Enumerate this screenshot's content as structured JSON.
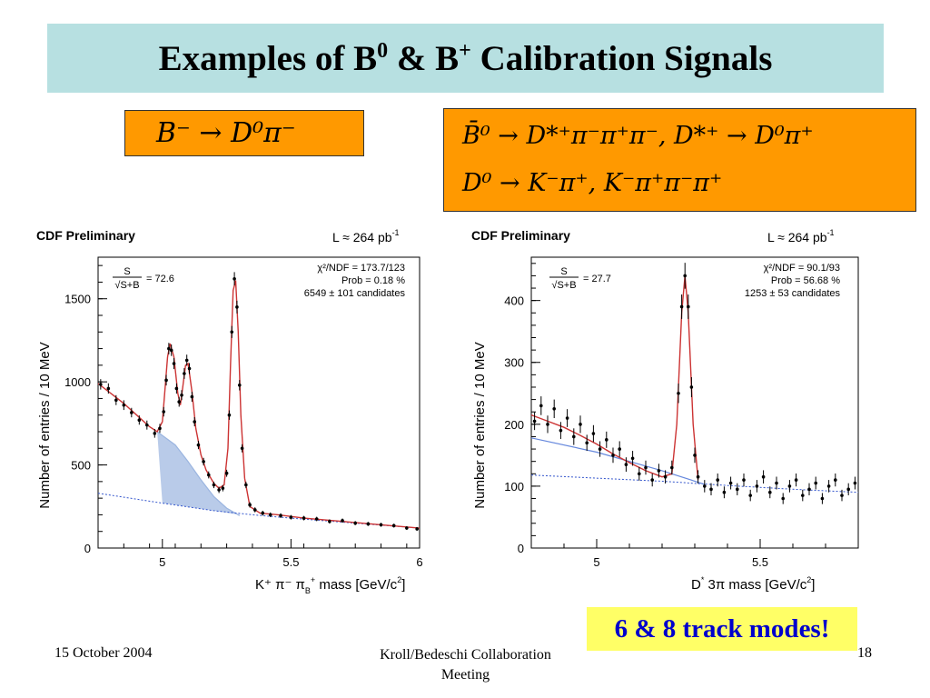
{
  "slide": {
    "title_main": "Examples of B",
    "title_sup1": "0",
    "title_mid": " & B",
    "title_sup2": "+",
    "title_end": " Calibration Signals",
    "eq1": "B⁻ → D⁰π⁻",
    "eq2_line1": "B̄⁰ → D*⁺π⁻π⁺π⁻, D*⁺ → D⁰π⁺",
    "eq2_line2": "D⁰ → K⁻π⁺, K⁻π⁺π⁻π⁺",
    "highlight": "6 & 8 track modes!",
    "footer_left": "15 October 2004",
    "footer_center_line1": "Kroll/Bedeschi Collaboration",
    "footer_center_line2": "Meeting",
    "footer_right": "18",
    "colors": {
      "title_bg": "#b7e0e1",
      "eq_bg": "#ff9900",
      "highlight_bg": "#ffff66",
      "highlight_text": "#0000cc",
      "fit_line": "#cc3333",
      "background_fill": "#9bb5e0"
    }
  },
  "chart_data": [
    {
      "type": "scatter",
      "header_left": "CDF Preliminary",
      "header_right": "L ≈ 264 pb",
      "header_right_sup": "-1",
      "ylabel": "Number of entries / 10 MeV",
      "xlabel": "K⁺ π⁻ π",
      "xlabel_sub": "B",
      "xlabel_sup": "+",
      "xlabel_end": " mass [GeV/c",
      "xlabel_sup2": "2",
      "xlabel_close": "]",
      "xlim": [
        4.75,
        6.0
      ],
      "ylim": [
        0,
        1750
      ],
      "xticks": [
        5,
        5.5,
        6
      ],
      "xtick_labels": [
        "5",
        "5.5",
        "6"
      ],
      "yticks": [
        0,
        500,
        1000,
        1500
      ],
      "ytick_labels": [
        "0",
        "500",
        "1000",
        "1500"
      ],
      "signif_num": "S",
      "signif_den": "√S+B",
      "signif_value": "= 72.6",
      "stats": [
        "χ²/NDF = 173.7/123",
        "Prob = 0.18 %",
        "6549 ± 101 candidates"
      ],
      "fit_curve": [
        [
          4.75,
          990
        ],
        [
          4.8,
          930
        ],
        [
          4.85,
          870
        ],
        [
          4.9,
          800
        ],
        [
          4.95,
          730
        ],
        [
          4.98,
          700
        ],
        [
          5.0,
          760
        ],
        [
          5.01,
          950
        ],
        [
          5.02,
          1150
        ],
        [
          5.03,
          1230
        ],
        [
          5.045,
          1150
        ],
        [
          5.06,
          930
        ],
        [
          5.07,
          860
        ],
        [
          5.08,
          980
        ],
        [
          5.09,
          1100
        ],
        [
          5.1,
          1110
        ],
        [
          5.115,
          940
        ],
        [
          5.13,
          720
        ],
        [
          5.15,
          560
        ],
        [
          5.17,
          470
        ],
        [
          5.2,
          390
        ],
        [
          5.22,
          360
        ],
        [
          5.24,
          380
        ],
        [
          5.255,
          600
        ],
        [
          5.265,
          1100
        ],
        [
          5.275,
          1550
        ],
        [
          5.285,
          1610
        ],
        [
          5.295,
          1300
        ],
        [
          5.305,
          800
        ],
        [
          5.32,
          420
        ],
        [
          5.34,
          250
        ],
        [
          5.38,
          210
        ],
        [
          5.45,
          200
        ],
        [
          5.55,
          180
        ],
        [
          5.7,
          160
        ],
        [
          5.85,
          140
        ],
        [
          6.0,
          120
        ]
      ],
      "combinatorial_bg": [
        [
          4.75,
          330
        ],
        [
          5.0,
          270
        ],
        [
          5.2,
          225
        ],
        [
          5.35,
          200
        ],
        [
          5.5,
          180
        ],
        [
          6.0,
          120
        ]
      ],
      "partial_bg_upper": [
        [
          4.98,
          700
        ],
        [
          5.05,
          620
        ],
        [
          5.1,
          520
        ],
        [
          5.15,
          410
        ],
        [
          5.2,
          310
        ],
        [
          5.25,
          240
        ],
        [
          5.3,
          195
        ]
      ],
      "points": [
        [
          4.76,
          985
        ],
        [
          4.79,
          960
        ],
        [
          4.82,
          890
        ],
        [
          4.85,
          860
        ],
        [
          4.88,
          815
        ],
        [
          4.91,
          770
        ],
        [
          4.94,
          740
        ],
        [
          4.97,
          690
        ],
        [
          4.99,
          720
        ],
        [
          5.005,
          820
        ],
        [
          5.015,
          1010
        ],
        [
          5.025,
          1200
        ],
        [
          5.035,
          1190
        ],
        [
          5.045,
          1110
        ],
        [
          5.055,
          960
        ],
        [
          5.065,
          880
        ],
        [
          5.075,
          920
        ],
        [
          5.085,
          1050
        ],
        [
          5.095,
          1130
        ],
        [
          5.105,
          1080
        ],
        [
          5.115,
          910
        ],
        [
          5.125,
          760
        ],
        [
          5.14,
          620
        ],
        [
          5.16,
          520
        ],
        [
          5.18,
          440
        ],
        [
          5.2,
          380
        ],
        [
          5.22,
          350
        ],
        [
          5.235,
          360
        ],
        [
          5.25,
          450
        ],
        [
          5.26,
          800
        ],
        [
          5.27,
          1300
        ],
        [
          5.28,
          1620
        ],
        [
          5.29,
          1450
        ],
        [
          5.3,
          980
        ],
        [
          5.31,
          600
        ],
        [
          5.325,
          380
        ],
        [
          5.34,
          260
        ],
        [
          5.36,
          230
        ],
        [
          5.39,
          210
        ],
        [
          5.42,
          200
        ],
        [
          5.46,
          195
        ],
        [
          5.5,
          185
        ],
        [
          5.55,
          180
        ],
        [
          5.6,
          175
        ],
        [
          5.65,
          160
        ],
        [
          5.7,
          165
        ],
        [
          5.75,
          150
        ],
        [
          5.8,
          145
        ],
        [
          5.85,
          140
        ],
        [
          5.9,
          135
        ],
        [
          5.95,
          120
        ],
        [
          5.99,
          115
        ]
      ]
    },
    {
      "type": "scatter",
      "header_left": "CDF Preliminary",
      "header_right": "L ≈ 264 pb",
      "header_right_sup": "-1",
      "ylabel": "Number of entries / 10 MeV",
      "xlabel": "D",
      "xlabel_sup": "*",
      "xlabel_end": " 3π mass [GeV/c",
      "xlabel_sup2": "2",
      "xlabel_close": "]",
      "xlim": [
        4.8,
        5.8
      ],
      "ylim": [
        0,
        470
      ],
      "xticks": [
        5,
        5.5
      ],
      "xtick_labels": [
        "5",
        "5.5"
      ],
      "yticks": [
        0,
        100,
        200,
        300,
        400
      ],
      "ytick_labels": [
        "0",
        "100",
        "200",
        "300",
        "400"
      ],
      "signif_num": "S",
      "signif_den": "√S+B",
      "signif_value": "= 27.7",
      "stats": [
        "χ²/NDF = 90.1/93",
        "Prob = 56.68 %",
        "1253 ± 53 candidates"
      ],
      "fit_curve": [
        [
          4.8,
          215
        ],
        [
          4.85,
          205
        ],
        [
          4.9,
          195
        ],
        [
          4.95,
          182
        ],
        [
          5.0,
          168
        ],
        [
          5.05,
          152
        ],
        [
          5.1,
          138
        ],
        [
          5.15,
          125
        ],
        [
          5.2,
          115
        ],
        [
          5.23,
          120
        ],
        [
          5.245,
          200
        ],
        [
          5.26,
          380
        ],
        [
          5.27,
          440
        ],
        [
          5.28,
          380
        ],
        [
          5.295,
          200
        ],
        [
          5.31,
          110
        ]
      ],
      "lower_curve": [
        [
          4.8,
          178
        ],
        [
          5.0,
          155
        ],
        [
          5.2,
          125
        ],
        [
          5.33,
          103
        ]
      ],
      "dotted_bg": [
        [
          4.8,
          118
        ],
        [
          5.0,
          113
        ],
        [
          5.2,
          108
        ],
        [
          5.4,
          101
        ],
        [
          5.6,
          95
        ],
        [
          5.8,
          90
        ]
      ],
      "points": [
        [
          4.81,
          205
        ],
        [
          4.83,
          230
        ],
        [
          4.85,
          200
        ],
        [
          4.87,
          225
        ],
        [
          4.89,
          190
        ],
        [
          4.91,
          210
        ],
        [
          4.93,
          180
        ],
        [
          4.95,
          200
        ],
        [
          4.97,
          170
        ],
        [
          4.99,
          185
        ],
        [
          5.01,
          160
        ],
        [
          5.03,
          175
        ],
        [
          5.05,
          150
        ],
        [
          5.07,
          160
        ],
        [
          5.09,
          135
        ],
        [
          5.11,
          145
        ],
        [
          5.13,
          120
        ],
        [
          5.15,
          130
        ],
        [
          5.17,
          110
        ],
        [
          5.19,
          125
        ],
        [
          5.21,
          115
        ],
        [
          5.23,
          130
        ],
        [
          5.25,
          250
        ],
        [
          5.26,
          390
        ],
        [
          5.27,
          440
        ],
        [
          5.28,
          390
        ],
        [
          5.29,
          260
        ],
        [
          5.3,
          150
        ],
        [
          5.31,
          115
        ],
        [
          5.33,
          100
        ],
        [
          5.35,
          95
        ],
        [
          5.37,
          110
        ],
        [
          5.39,
          90
        ],
        [
          5.41,
          105
        ],
        [
          5.43,
          95
        ],
        [
          5.45,
          110
        ],
        [
          5.47,
          85
        ],
        [
          5.49,
          100
        ],
        [
          5.51,
          115
        ],
        [
          5.53,
          90
        ],
        [
          5.55,
          105
        ],
        [
          5.57,
          80
        ],
        [
          5.59,
          100
        ],
        [
          5.61,
          110
        ],
        [
          5.63,
          85
        ],
        [
          5.65,
          95
        ],
        [
          5.67,
          105
        ],
        [
          5.69,
          80
        ],
        [
          5.71,
          100
        ],
        [
          5.73,
          110
        ],
        [
          5.75,
          85
        ],
        [
          5.77,
          95
        ],
        [
          5.79,
          105
        ]
      ]
    }
  ]
}
